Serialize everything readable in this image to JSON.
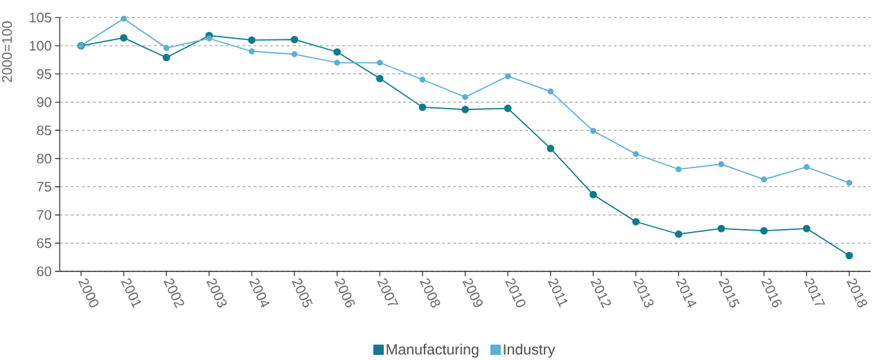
{
  "chart_data": {
    "type": "line",
    "ylabel": "2000=100",
    "categories": [
      "2000",
      "2001",
      "2002",
      "2003",
      "2004",
      "2005",
      "2006",
      "2007",
      "2008",
      "2009",
      "2010",
      "2011",
      "2012",
      "2013",
      "2014",
      "2015",
      "2016",
      "2017",
      "2018"
    ],
    "series": [
      {
        "name": "Manufacturing",
        "color": "#0e7a8e",
        "values": [
          100,
          101.4,
          97.9,
          101.8,
          101.0,
          101.1,
          98.9,
          94.2,
          89.1,
          88.7,
          88.9,
          81.8,
          73.6,
          68.8,
          66.6,
          67.6,
          67.2,
          67.6,
          62.8
        ]
      },
      {
        "name": "Industry",
        "color": "#5aafd6",
        "values": [
          100,
          104.8,
          99.6,
          101.3,
          99.0,
          98.5,
          97.0,
          97.0,
          94.0,
          90.9,
          94.6,
          91.9,
          84.9,
          80.8,
          78.1,
          79.0,
          76.3,
          78.5,
          75.7
        ]
      }
    ],
    "ylim": [
      60,
      105
    ],
    "yticks": [
      60,
      65,
      70,
      75,
      80,
      85,
      90,
      95,
      100,
      105
    ],
    "grid": "y",
    "legend": "bottom",
    "marker": "circle",
    "line_style": "solid"
  }
}
